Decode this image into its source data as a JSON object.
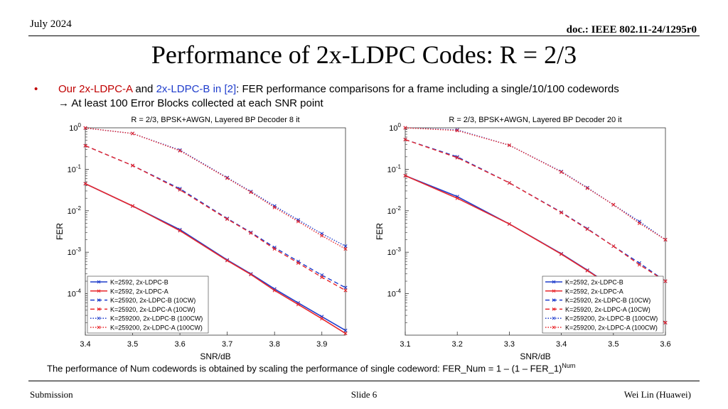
{
  "header": {
    "date": "July 2024",
    "doc_id": "doc.: IEEE 802.11-24/1295r0"
  },
  "title": "Performance of 2x-LDPC Codes: R = 2/3",
  "bullet": {
    "marker": "•",
    "part1": "Our 2x-LDPC-A",
    "part2": " and ",
    "part3": "2x-LDPC-B in [2]",
    "part4": ": FER performance comparisons for a frame including a single/10/100 codewords",
    "line2": "→ At least 100 Error Blocks collected at each SNR point"
  },
  "caption": {
    "text": "The performance of Num codewords is obtained by scaling the performance of single codeword: FER_Num = 1 – (1 – FER_1)",
    "sup": "Num"
  },
  "footer": {
    "left": "Submission",
    "center": "Slide 6",
    "right": "Wei Lin (Huawei)"
  },
  "colors": {
    "blue": "#1f3dcc",
    "red": "#e8262b",
    "accent_red": "#c00000"
  },
  "chart_data": [
    {
      "type": "line",
      "title": "R = 2/3, BPSK+AWGN, Layered BP Decoder 8 it",
      "xlabel": "SNR/dB",
      "ylabel": "FER",
      "xlim": [
        3.4,
        3.95
      ],
      "ylim": [
        1e-05,
        1
      ],
      "yscale": "log",
      "xticks": [
        "3.4",
        "3.5",
        "3.6",
        "3.7",
        "3.8",
        "3.9"
      ],
      "grid": false,
      "legend_position": "bottom-left",
      "x": [
        3.4,
        3.5,
        3.6,
        3.7,
        3.75,
        3.8,
        3.85,
        3.9,
        3.95
      ],
      "series": [
        {
          "name": "K=2592, 2x-LDPC-B",
          "color": "blue",
          "dash": "solid",
          "values": [
            0.045,
            0.013,
            0.0035,
            0.00065,
            0.0003,
            0.00013,
            6e-05,
            2.8e-05,
            1.3e-05
          ]
        },
        {
          "name": "K=2592, 2x-LDPC-A",
          "color": "red",
          "dash": "solid",
          "values": [
            0.045,
            0.013,
            0.0033,
            0.00063,
            0.00029,
            0.00012,
            5.5e-05,
            2.5e-05,
            1.1e-05
          ]
        },
        {
          "name": "K=25920, 2x-LDPC-B (10CW)",
          "color": "blue",
          "dash": "dashed",
          "values": [
            0.37,
            0.123,
            0.034,
            0.0065,
            0.003,
            0.0013,
            0.0006,
            0.00028,
            0.00014
          ]
        },
        {
          "name": "K=25920, 2x-LDPC-A (10CW)",
          "color": "red",
          "dash": "dashed",
          "values": [
            0.37,
            0.123,
            0.032,
            0.0063,
            0.0029,
            0.0012,
            0.00055,
            0.00025,
            0.00012
          ]
        },
        {
          "name": "K=259200, 2x-LDPC-B (100CW)",
          "color": "blue",
          "dash": "dotted",
          "values": [
            0.99,
            0.73,
            0.29,
            0.063,
            0.029,
            0.013,
            0.006,
            0.0028,
            0.0014
          ]
        },
        {
          "name": "K=259200, 2x-LDPC-A (100CW)",
          "color": "red",
          "dash": "dotted",
          "values": [
            0.99,
            0.73,
            0.28,
            0.061,
            0.028,
            0.012,
            0.0055,
            0.0025,
            0.0012
          ]
        }
      ]
    },
    {
      "type": "line",
      "title": "R = 2/3, BPSK+AWGN, Layered BP Decoder 20 it",
      "xlabel": "SNR/dB",
      "ylabel": "FER",
      "xlim": [
        3.1,
        3.6
      ],
      "ylim": [
        1e-05,
        1
      ],
      "yscale": "log",
      "xticks": [
        "3.1",
        "3.2",
        "3.3",
        "3.4",
        "3.5",
        "3.6"
      ],
      "grid": false,
      "legend_position": "bottom-right",
      "x": [
        3.1,
        3.2,
        3.3,
        3.4,
        3.45,
        3.5,
        3.55,
        3.6
      ],
      "series": [
        {
          "name": "K=2592, 2x-LDPC-B",
          "color": "blue",
          "dash": "solid",
          "values": [
            0.07,
            0.022,
            0.0048,
            0.00092,
            0.00037,
            0.00014,
            5.5e-05,
            2e-05
          ]
        },
        {
          "name": "K=2592, 2x-LDPC-A",
          "color": "red",
          "dash": "solid",
          "values": [
            0.07,
            0.02,
            0.0048,
            0.0009,
            0.00036,
            0.00014,
            5e-05,
            2e-05
          ]
        },
        {
          "name": "K=25920, 2x-LDPC-B (10CW)",
          "color": "blue",
          "dash": "dashed",
          "values": [
            0.52,
            0.2,
            0.047,
            0.0092,
            0.0037,
            0.0014,
            0.00055,
            0.0002
          ]
        },
        {
          "name": "K=25920, 2x-LDPC-A (10CW)",
          "color": "red",
          "dash": "dashed",
          "values": [
            0.52,
            0.19,
            0.047,
            0.009,
            0.0036,
            0.0014,
            0.0005,
            0.0002
          ]
        },
        {
          "name": "K=259200, 2x-LDPC-B (100CW)",
          "color": "blue",
          "dash": "dotted",
          "values": [
            0.999,
            0.89,
            0.38,
            0.088,
            0.036,
            0.014,
            0.0055,
            0.002
          ]
        },
        {
          "name": "K=259200, 2x-LDPC-A (100CW)",
          "color": "red",
          "dash": "dotted",
          "values": [
            0.999,
            0.86,
            0.38,
            0.086,
            0.035,
            0.014,
            0.005,
            0.002
          ]
        }
      ]
    }
  ]
}
